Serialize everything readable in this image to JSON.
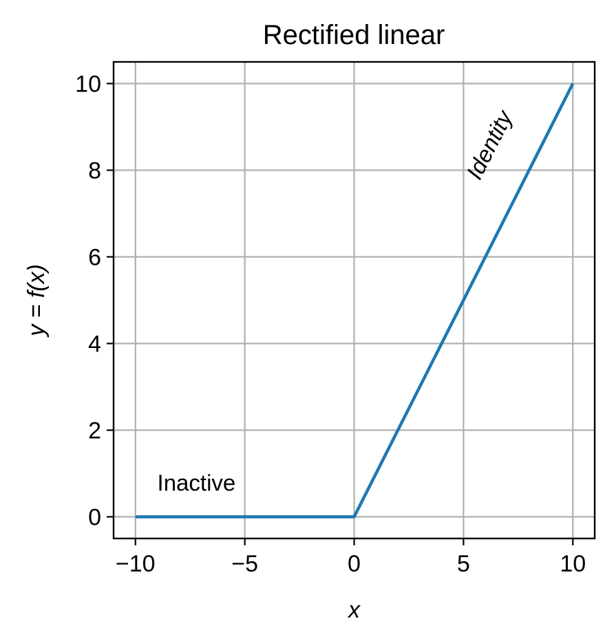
{
  "chart_data": {
    "type": "line",
    "title": "Rectified linear",
    "xlabel": "x",
    "ylabel": "y = f(x)",
    "xlim": [
      -11,
      11
    ],
    "ylim": [
      -0.5,
      10.5
    ],
    "x_ticks": [
      -10,
      -5,
      0,
      5,
      10
    ],
    "x_tick_labels": [
      "−10",
      "−5",
      "0",
      "5",
      "10"
    ],
    "y_ticks": [
      0,
      2,
      4,
      6,
      8,
      10
    ],
    "y_tick_labels": [
      "0",
      "2",
      "4",
      "6",
      "8",
      "10"
    ],
    "grid": true,
    "series": [
      {
        "color": "#1f77b4",
        "points": [
          [
            -10,
            0
          ],
          [
            0,
            0
          ],
          [
            10,
            10
          ]
        ]
      }
    ],
    "annotations": [
      {
        "text": "Inactive",
        "x": -9,
        "y": 0.6,
        "rotation": 0,
        "style": "normal"
      },
      {
        "text": "Identity",
        "x": 6.5,
        "y": 8.5,
        "rotation": -63,
        "style": "italic"
      }
    ]
  }
}
